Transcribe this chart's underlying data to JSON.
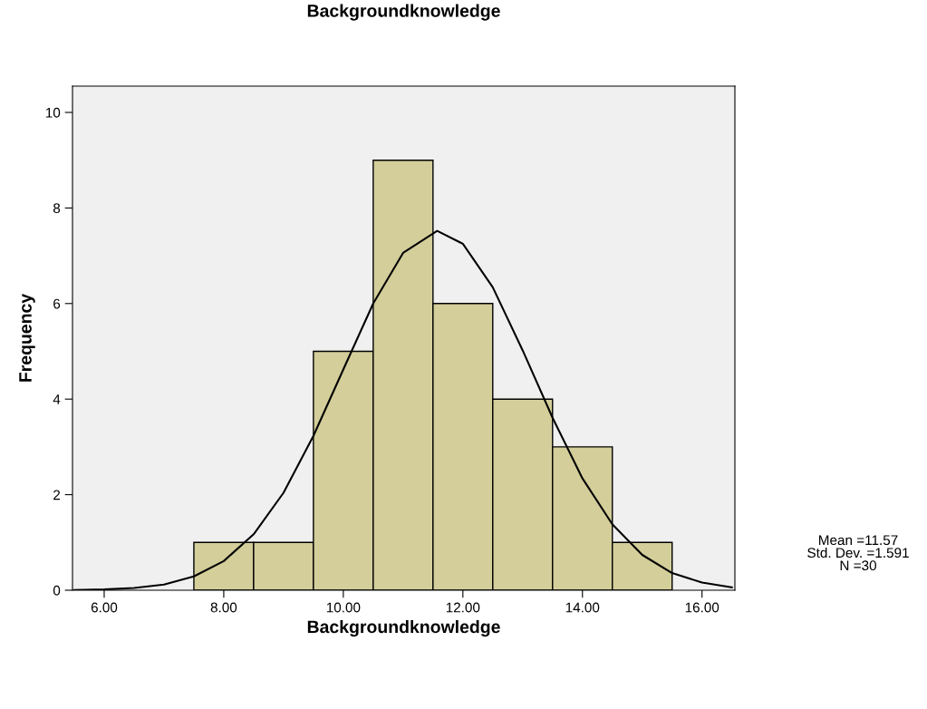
{
  "chart_data": {
    "type": "histogram",
    "title": "Backgroundknowledge",
    "xlabel": "Backgroundknowledge",
    "ylabel": "Frequency",
    "bins": [
      7.5,
      8.5,
      9.5,
      10.5,
      11.5,
      12.5,
      13.5,
      14.5,
      15.5
    ],
    "values": [
      1,
      1,
      5,
      9,
      6,
      4,
      3,
      1
    ],
    "color": "#d3ce9a",
    "series": [
      {
        "type": "line",
        "color": "#000000",
        "x": [
          5.5,
          6.0,
          6.5,
          7.0,
          7.5,
          8.0,
          8.5,
          9.0,
          9.5,
          10.0,
          10.5,
          11.0,
          11.57,
          12.0,
          12.5,
          13.0,
          13.5,
          14.0,
          14.5,
          15.0,
          15.5,
          16.0,
          16.5
        ],
        "values": [
          0.005,
          0.016,
          0.047,
          0.12,
          0.29,
          0.61,
          1.17,
          2.04,
          3.23,
          4.62,
          6.0,
          7.06,
          7.52,
          7.25,
          6.34,
          5.02,
          3.61,
          2.34,
          1.38,
          0.74,
          0.36,
          0.16,
          0.06
        ]
      }
    ],
    "xlim": [
      5.47,
      16.55
    ],
    "ylim": [
      0,
      10.55
    ],
    "xticks": [
      {
        "value": 6,
        "label": "6.00"
      },
      {
        "value": 8,
        "label": "8.00"
      },
      {
        "value": 10,
        "label": "10.00"
      },
      {
        "value": 12,
        "label": "12.00"
      },
      {
        "value": 14,
        "label": "14.00"
      },
      {
        "value": 16,
        "label": "16.00"
      }
    ],
    "yticks": [
      0,
      2,
      4,
      6,
      8,
      10
    ],
    "grid": false,
    "legend": false,
    "annotations": [
      "Mean =11.57",
      "Std. Dev. =1.591",
      "N =30"
    ]
  }
}
